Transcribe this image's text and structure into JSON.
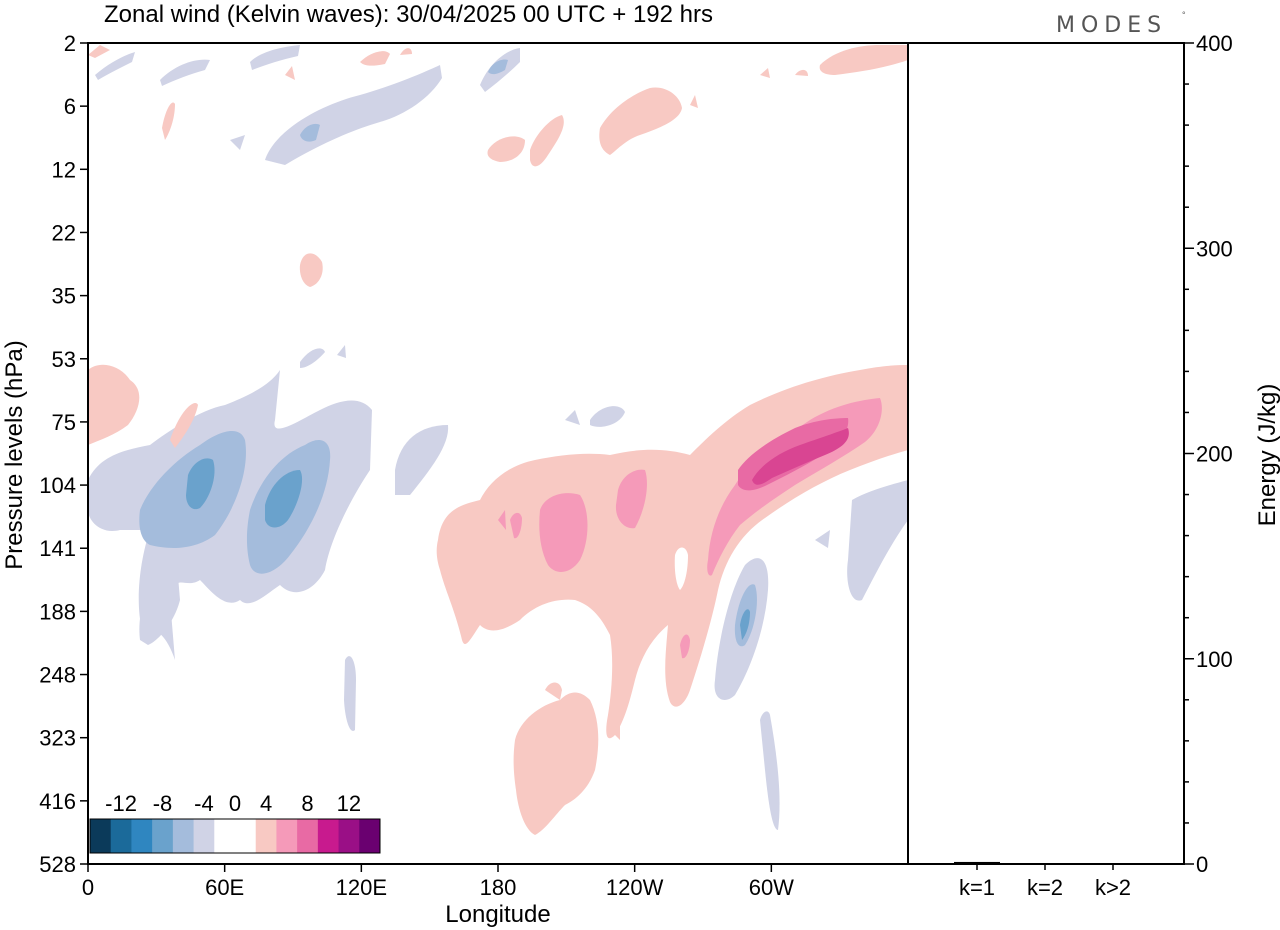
{
  "title": "Zonal wind (Kelvin waves):  30/04/2025  00 UTC  + 192 hrs",
  "logo": "MODES",
  "logo_mark": "°",
  "colors": {
    "frame": "#000000",
    "neg_levels": [
      "#0b3a5a",
      "#1b6a9a",
      "#2f86c0",
      "#6aa2cc",
      "#a4bcdc",
      "#d0d3e6"
    ],
    "pos_levels": [
      "#f8c9c3",
      "#f59ab9",
      "#e86aa4",
      "#c81a8e",
      "#9a0f86",
      "#6a0070"
    ]
  },
  "chart_data": [
    {
      "type": "heatmap",
      "description_variable": "zonal wind",
      "xlabel": "Longitude",
      "ylabel": "Pressure levels (hPa)",
      "x_ticks": [
        "0",
        "60E",
        "120E",
        "180",
        "120W",
        "60W"
      ],
      "y_ticks": [
        "2",
        "6",
        "12",
        "22",
        "35",
        "53",
        "75",
        "104",
        "141",
        "188",
        "248",
        "323",
        "416",
        "528"
      ],
      "colorbar": {
        "labels": [
          "-12",
          "-8",
          "-4",
          "0",
          "4",
          "8",
          "12"
        ],
        "levels": [
          -14,
          -12,
          -10,
          -8,
          -6,
          -4,
          -2,
          2,
          4,
          6,
          8,
          10,
          12,
          14
        ]
      },
      "features": [
        {
          "sign": "negative",
          "max_abs": 6,
          "lon_center": 50,
          "level_center": "104",
          "note": "westward anomaly 40E-60E"
        },
        {
          "sign": "negative",
          "max_abs": 6,
          "lon_center": 82,
          "level_center": "104",
          "note": "westward anomaly 75E-95E"
        },
        {
          "sign": "positive",
          "max_abs": 8,
          "lon_center": 300,
          "level_center": "90",
          "note": "eastward anomaly 60W-40W"
        },
        {
          "sign": "positive",
          "max_abs": 4,
          "lon_center": 200,
          "level_center": "120",
          "note": "broad eastward anomaly"
        }
      ]
    },
    {
      "type": "bar",
      "ylabel": "Energy (J/kg)",
      "categories": [
        "k=1",
        "k=2",
        "k>2"
      ],
      "values": [
        1,
        0,
        0
      ],
      "ylim": [
        0,
        400
      ],
      "y_ticks": [
        "0",
        "100",
        "200",
        "300",
        "400"
      ]
    }
  ]
}
